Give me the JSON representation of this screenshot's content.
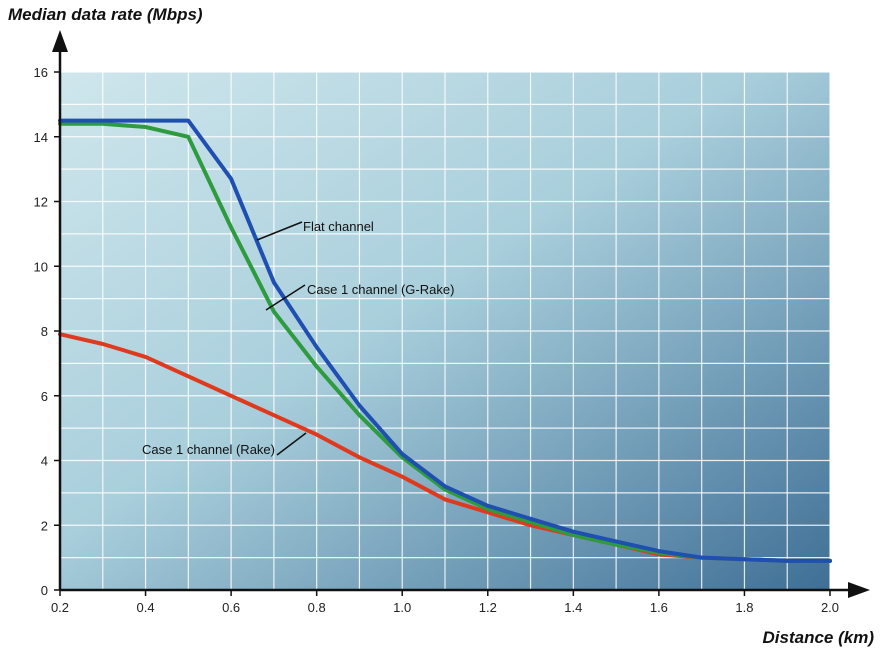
{
  "chart_data": {
    "type": "line",
    "title": "",
    "ylabel": "Median data rate (Mbps)",
    "xlabel": "Distance (km)",
    "xlim": [
      0.2,
      2.0
    ],
    "ylim": [
      0,
      16
    ],
    "x_ticks": [
      "0.2",
      "0.4",
      "0.6",
      "0.8",
      "1.0",
      "1.2",
      "1.4",
      "1.6",
      "1.8",
      "2.0"
    ],
    "y_ticks": [
      "0",
      "2",
      "4",
      "6",
      "8",
      "10",
      "12",
      "14",
      "16"
    ],
    "grid": true,
    "legend": "none",
    "series": [
      {
        "name": "Flat channel",
        "color": "#1f4fb0",
        "x": [
          0.2,
          0.3,
          0.4,
          0.5,
          0.6,
          0.7,
          0.8,
          0.9,
          1.0,
          1.1,
          1.2,
          1.3,
          1.4,
          1.5,
          1.6,
          1.7,
          1.8,
          1.9,
          2.0
        ],
        "y": [
          14.5,
          14.5,
          14.5,
          14.5,
          12.7,
          9.5,
          7.5,
          5.7,
          4.2,
          3.2,
          2.6,
          2.2,
          1.8,
          1.5,
          1.2,
          1.0,
          0.95,
          0.9,
          0.9
        ]
      },
      {
        "name": "Case 1 channel (G-Rake)",
        "color": "#2e9b3e",
        "x": [
          0.2,
          0.3,
          0.4,
          0.5,
          0.6,
          0.7,
          0.8,
          0.9,
          1.0,
          1.1,
          1.2,
          1.3,
          1.4,
          1.5,
          1.6,
          1.7,
          1.8,
          1.9,
          2.0
        ],
        "y": [
          14.4,
          14.4,
          14.3,
          14.0,
          11.2,
          8.6,
          6.9,
          5.4,
          4.1,
          3.1,
          2.5,
          2.1,
          1.7,
          1.4,
          1.15,
          1.0,
          0.95,
          0.9,
          0.9
        ]
      },
      {
        "name": "Case 1 channel (Rake)",
        "color": "#e03a1e",
        "x": [
          0.2,
          0.3,
          0.4,
          0.5,
          0.6,
          0.7,
          0.8,
          0.9,
          1.0,
          1.1,
          1.2,
          1.3,
          1.4,
          1.5,
          1.6,
          1.7,
          1.8,
          1.9,
          2.0
        ],
        "y": [
          7.9,
          7.6,
          7.2,
          6.6,
          6.0,
          5.4,
          4.8,
          4.1,
          3.5,
          2.8,
          2.4,
          2.0,
          1.7,
          1.4,
          1.1,
          1.0,
          0.95,
          0.9,
          0.9
        ]
      }
    ],
    "annotations": [
      {
        "text": "Flat channel",
        "series": 0
      },
      {
        "text": "Case 1 channel (G-Rake)",
        "series": 1
      },
      {
        "text": "Case 1 channel (Rake)",
        "series": 2
      }
    ]
  }
}
